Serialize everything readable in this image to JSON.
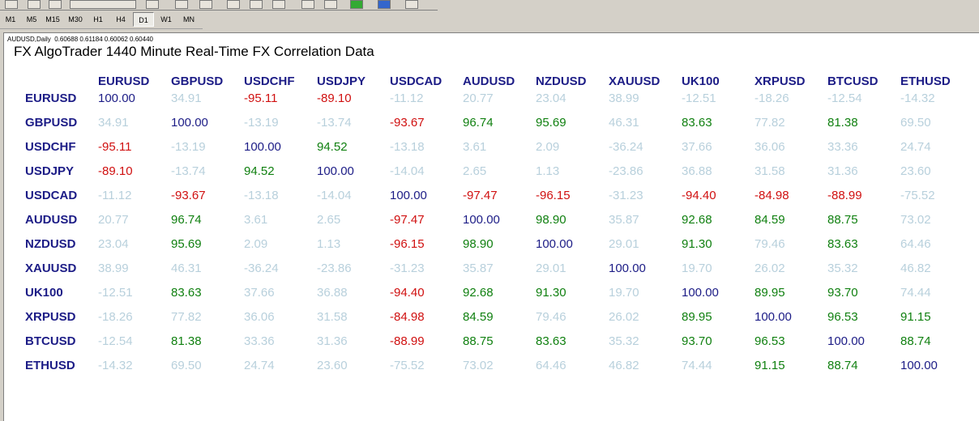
{
  "toolbar": {
    "timeframes": [
      "M1",
      "M5",
      "M15",
      "M30",
      "H1",
      "H4",
      "D1",
      "W1",
      "MN"
    ],
    "active": "D1"
  },
  "chart_window": {
    "info": "AUDUSD,Daily  0.60688 0.61184 0.60062 0.60440",
    "title": "FX AlgoTrader 1440 Minute Real-Time FX Correlation Data",
    "table": {
      "columns": [
        "EURUSD",
        "GBPUSD",
        "USDCHF",
        "USDJPY",
        "USDCAD",
        "AUDUSD",
        "NZDUSD",
        "XAUUSD",
        "UK100",
        "XRPUSD",
        "BTCUSD",
        "ETHUSD"
      ],
      "rows": [
        {
          "label": "EURUSD",
          "cells": [
            "100.00",
            "34.91",
            "-95.11",
            "-89.10",
            "-11.12",
            "20.77",
            "23.04",
            "38.99",
            "-12.51",
            "-18.26",
            "-12.54",
            "-14.32"
          ]
        },
        {
          "label": "GBPUSD",
          "cells": [
            "34.91",
            "100.00",
            "-13.19",
            "-13.74",
            "-93.67",
            "96.74",
            "95.69",
            "46.31",
            "83.63",
            "77.82",
            "81.38",
            "69.50"
          ]
        },
        {
          "label": "USDCHF",
          "cells": [
            "-95.11",
            "-13.19",
            "100.00",
            "94.52",
            "-13.18",
            "3.61",
            "2.09",
            "-36.24",
            "37.66",
            "36.06",
            "33.36",
            "24.74"
          ]
        },
        {
          "label": "USDJPY",
          "cells": [
            "-89.10",
            "-13.74",
            "94.52",
            "100.00",
            "-14.04",
            "2.65",
            "1.13",
            "-23.86",
            "36.88",
            "31.58",
            "31.36",
            "23.60"
          ]
        },
        {
          "label": "USDCAD",
          "cells": [
            "-11.12",
            "-93.67",
            "-13.18",
            "-14.04",
            "100.00",
            "-97.47",
            "-96.15",
            "-31.23",
            "-94.40",
            "-84.98",
            "-88.99",
            "-75.52"
          ]
        },
        {
          "label": "AUDUSD",
          "cells": [
            "20.77",
            "96.74",
            "3.61",
            "2.65",
            "-97.47",
            "100.00",
            "98.90",
            "35.87",
            "92.68",
            "84.59",
            "88.75",
            "73.02"
          ]
        },
        {
          "label": "NZDUSD",
          "cells": [
            "23.04",
            "95.69",
            "2.09",
            "1.13",
            "-96.15",
            "98.90",
            "100.00",
            "29.01",
            "91.30",
            "79.46",
            "83.63",
            "64.46"
          ]
        },
        {
          "label": "XAUUSD",
          "cells": [
            "38.99",
            "46.31",
            "-36.24",
            "-23.86",
            "-31.23",
            "35.87",
            "29.01",
            "100.00",
            "19.70",
            "26.02",
            "35.32",
            "46.82"
          ]
        },
        {
          "label": "UK100",
          "cells": [
            "-12.51",
            "83.63",
            "37.66",
            "36.88",
            "-94.40",
            "92.68",
            "91.30",
            "19.70",
            "100.00",
            "89.95",
            "93.70",
            "74.44"
          ]
        },
        {
          "label": "XRPUSD",
          "cells": [
            "-18.26",
            "77.82",
            "36.06",
            "31.58",
            "-84.98",
            "84.59",
            "79.46",
            "26.02",
            "89.95",
            "100.00",
            "96.53",
            "91.15"
          ]
        },
        {
          "label": "BTCUSD",
          "cells": [
            "-12.54",
            "81.38",
            "33.36",
            "31.36",
            "-88.99",
            "88.75",
            "83.63",
            "35.32",
            "93.70",
            "96.53",
            "100.00",
            "88.74"
          ]
        },
        {
          "label": "ETHUSD",
          "cells": [
            "-14.32",
            "69.50",
            "24.74",
            "23.60",
            "-75.52",
            "73.02",
            "64.46",
            "46.82",
            "74.44",
            "91.15",
            "88.74",
            "100.00"
          ]
        }
      ]
    }
  }
}
